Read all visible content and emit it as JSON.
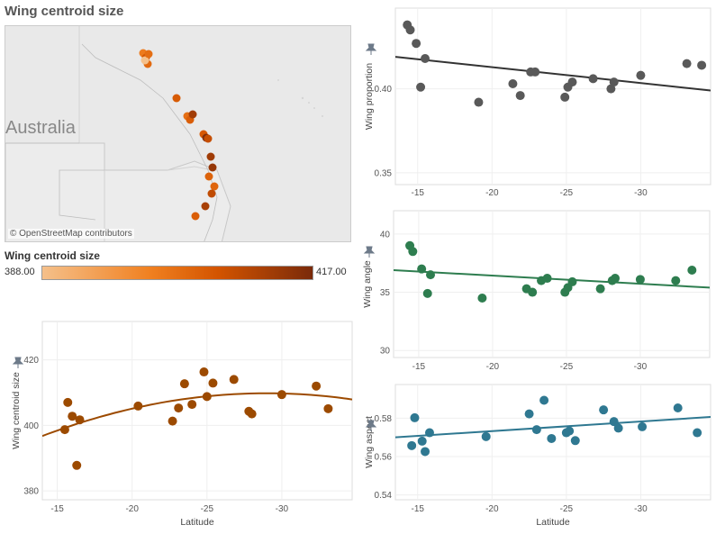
{
  "title": "Wing centroid size",
  "map": {
    "country_label": "Australia",
    "credit": "© OpenStreetMap contributors",
    "legend_title": "Wing centroid size",
    "legend_min": "388.00",
    "legend_max": "417.00",
    "colors": [
      "#f5c08a",
      "#f08020",
      "#d35400",
      "#7a2a0a"
    ]
  },
  "chart_data": [
    {
      "id": "wing-proportion",
      "type": "scatter",
      "ylabel": "Wing proportion",
      "xlabel": "",
      "xlim": [
        -13.5,
        -34.7
      ],
      "ylim": [
        0.343,
        0.448
      ],
      "xticks": [
        -15,
        -20,
        -25,
        -30
      ],
      "yticks": [
        0.35,
        0.4
      ],
      "ytick_labels": [
        "0.35",
        "0.40"
      ],
      "color": "#595959",
      "trend": {
        "kind": "linear",
        "points": [
          [
            -13.5,
            0.419
          ],
          [
            -34.7,
            0.399
          ]
        ]
      },
      "x": [
        -14.3,
        -14.5,
        -14.9,
        -15.2,
        -15.5,
        -19.1,
        -21.4,
        -21.9,
        -22.6,
        -22.9,
        -24.9,
        -25.1,
        -25.4,
        -26.8,
        -28.0,
        -28.2,
        -30.0,
        -33.1,
        -34.1
      ],
      "y": [
        0.438,
        0.435,
        0.427,
        0.401,
        0.418,
        0.392,
        0.403,
        0.396,
        0.41,
        0.41,
        0.395,
        0.401,
        0.404,
        0.406,
        0.4,
        0.404,
        0.408,
        0.415,
        0.414
      ]
    },
    {
      "id": "wing-angle",
      "type": "scatter",
      "ylabel": "Wing angle",
      "xlabel": "",
      "xlim": [
        -13.3,
        -34.7
      ],
      "ylim": [
        29.4,
        42.0
      ],
      "xticks": [
        -15,
        -20,
        -25,
        -30
      ],
      "yticks": [
        30,
        35,
        40
      ],
      "ytick_labels": [
        "30",
        "35",
        "40"
      ],
      "color": "#2e7d4f",
      "trend": {
        "kind": "linear",
        "points": [
          [
            -13.3,
            36.9
          ],
          [
            -34.7,
            35.4
          ]
        ]
      },
      "x": [
        -14.4,
        -14.6,
        -15.2,
        -15.6,
        -15.8,
        -19.3,
        -22.3,
        -22.7,
        -23.3,
        -23.7,
        -24.9,
        -25.1,
        -25.4,
        -27.3,
        -28.1,
        -28.3,
        -30.0,
        -32.4,
        -33.5
      ],
      "y": [
        39.0,
        38.5,
        37.0,
        34.9,
        36.5,
        34.5,
        35.3,
        35.0,
        36.0,
        36.2,
        35.0,
        35.4,
        35.9,
        35.3,
        36.0,
        36.2,
        36.1,
        36.0,
        36.9
      ]
    },
    {
      "id": "wing-aspect",
      "type": "scatter",
      "ylabel": "Wing aspect",
      "xlabel": "Latitude",
      "xlim": [
        -13.5,
        -34.7
      ],
      "ylim": [
        0.5375,
        0.5975
      ],
      "xticks": [
        -15,
        -20,
        -25,
        -30
      ],
      "yticks": [
        0.54,
        0.56,
        0.58
      ],
      "ytick_labels": [
        "0.54",
        "0.56",
        "0.58"
      ],
      "color": "#2f7891",
      "trend": {
        "kind": "linear",
        "points": [
          [
            -13.5,
            0.57
          ],
          [
            -34.7,
            0.5806
          ]
        ]
      },
      "x": [
        -14.6,
        -14.8,
        -15.3,
        -15.5,
        -15.8,
        -19.6,
        -22.5,
        -23.0,
        -23.5,
        -24.0,
        -25.0,
        -25.2,
        -25.6,
        -27.5,
        -28.2,
        -28.5,
        -30.1,
        -32.5,
        -33.8
      ],
      "y": [
        0.5657,
        0.5802,
        0.568,
        0.5626,
        0.5724,
        0.5704,
        0.5822,
        0.574,
        0.5893,
        0.5694,
        0.5724,
        0.5733,
        0.5683,
        0.5843,
        0.5782,
        0.5748,
        0.5755,
        0.5853,
        0.5724
      ]
    },
    {
      "id": "wing-centroid-size",
      "type": "scatter",
      "ylabel": "Wing centroid size",
      "xlabel": "Latitude",
      "xlim": [
        -14.0,
        -34.7
      ],
      "ylim": [
        377.3,
        431.7
      ],
      "xticks": [
        -15,
        -20,
        -25,
        -30
      ],
      "yticks": [
        380,
        400,
        420
      ],
      "ytick_labels": [
        "380",
        "400",
        "420"
      ],
      "color": "#9c4a00",
      "trend": {
        "kind": "quadratic",
        "vertex_x": -29.0,
        "vertex_y": 409.8,
        "curvature": -0.058
      },
      "x": [
        -15.5,
        -15.7,
        -16.0,
        -16.3,
        -16.5,
        -20.4,
        -22.7,
        -23.1,
        -23.5,
        -24.0,
        -24.8,
        -25.0,
        -25.4,
        -26.8,
        -27.8,
        -28.0,
        -30.0,
        -32.3,
        -33.1
      ],
      "y": [
        398.7,
        407.0,
        402.8,
        387.8,
        401.7,
        405.9,
        401.3,
        405.3,
        412.7,
        406.4,
        416.3,
        408.8,
        412.9,
        414.0,
        404.3,
        403.5,
        409.4,
        412.0,
        405.1
      ]
    }
  ]
}
